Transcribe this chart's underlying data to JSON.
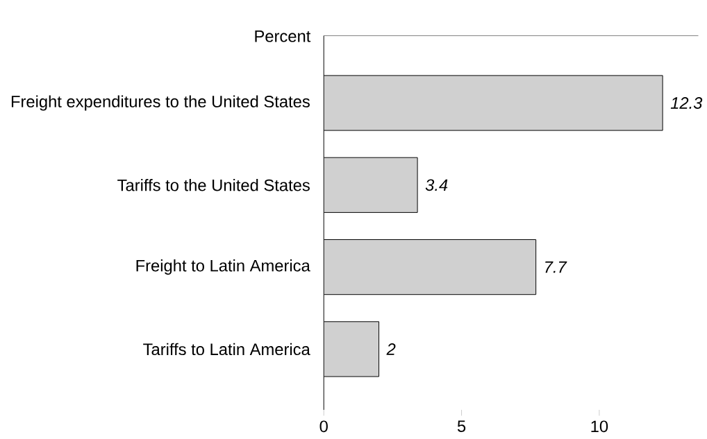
{
  "chart_data": {
    "type": "bar",
    "orientation": "horizontal",
    "annotations": [
      "Percent"
    ],
    "categories": [
      "Freight expenditures to the United States",
      "Tariffs to the United States",
      "Freight to Latin America",
      "Tariffs to Latin America"
    ],
    "values": [
      12.3,
      3.4,
      7.7,
      2
    ],
    "color": "#d0d0d0",
    "data_labels": true,
    "xlim": [
      0,
      13.6
    ],
    "xticks": [
      0,
      5,
      10
    ]
  }
}
